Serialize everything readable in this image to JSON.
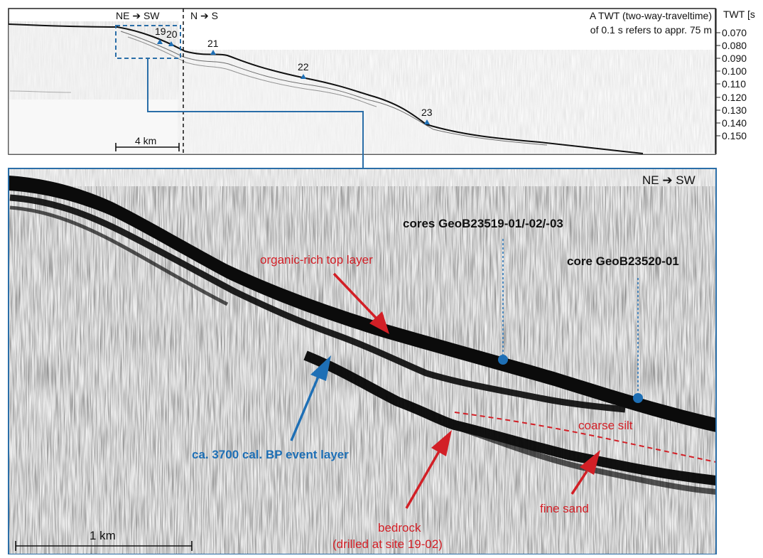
{
  "top_panel": {
    "direction_left": "NE ➔ SW",
    "direction_right": "N ➔ S",
    "note_line1": "A TWT (two-way-traveltime)",
    "note_line2": "of 0.1 s refers to appr. 75 m",
    "axis_title": "TWT [s",
    "twt_ticks": [
      "0.070",
      "0.080",
      "0.090",
      "0.100",
      "0.110",
      "0.120",
      "0.130",
      "0.140",
      "0.150"
    ],
    "site_labels": [
      "19",
      "20",
      "21",
      "22",
      "23"
    ],
    "scale_bar": "4 km"
  },
  "bottom_panel": {
    "direction": "NE ➔ SW",
    "label_cores_1": "cores GeoB23519-01/-02/-03",
    "label_core_2": "core GeoB23520-01",
    "label_top_layer": "organic-rich top layer",
    "label_event_layer": "ca. 3700 cal. BP event layer",
    "label_coarse_silt": "coarse silt",
    "label_fine_sand": "fine sand",
    "label_bedrock_1": "bedrock",
    "label_bedrock_2": "(drilled at site 19-02)",
    "scale_bar": "1 km"
  },
  "colors": {
    "frame_blue": "#2a6ea8",
    "annotation_red": "#d21f26",
    "annotation_blue": "#1e6fb5",
    "marker_blue": "#1e6fb5"
  }
}
